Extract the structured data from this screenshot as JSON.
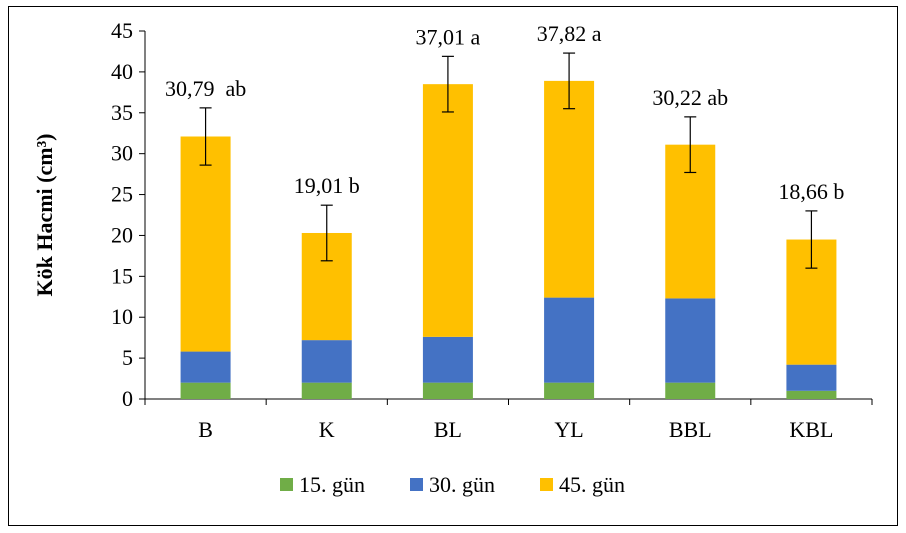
{
  "chart_data": {
    "type": "bar",
    "stacked": true,
    "categories": [
      "B",
      "K",
      "BL",
      "YL",
      "BBL",
      "KBL"
    ],
    "series": [
      {
        "name": "15. gün",
        "color": "#70ad47",
        "values": [
          2.0,
          2.0,
          2.0,
          2.0,
          2.0,
          1.0
        ]
      },
      {
        "name": "30. gün",
        "color": "#4472c4",
        "values": [
          3.8,
          5.2,
          5.6,
          10.4,
          10.3,
          3.2
        ]
      },
      {
        "name": "45. gün",
        "color": "#ffc000",
        "values": [
          26.3,
          13.1,
          30.9,
          26.5,
          18.8,
          15.3
        ]
      }
    ],
    "error": [
      3.5,
      3.4,
      3.4,
      3.4,
      3.4,
      3.5
    ],
    "annotations": [
      "30,79  ab",
      "19,01 b",
      "37,01 a",
      "37,82 a",
      "30,22 ab",
      "18,66 b"
    ],
    "ylabel": "Kök Hacmi (cm³)",
    "ylim": [
      0,
      45
    ],
    "yticks": [
      0,
      5,
      10,
      15,
      20,
      25,
      30,
      35,
      40,
      45
    ],
    "legend_position": "bottom",
    "grid": false
  }
}
